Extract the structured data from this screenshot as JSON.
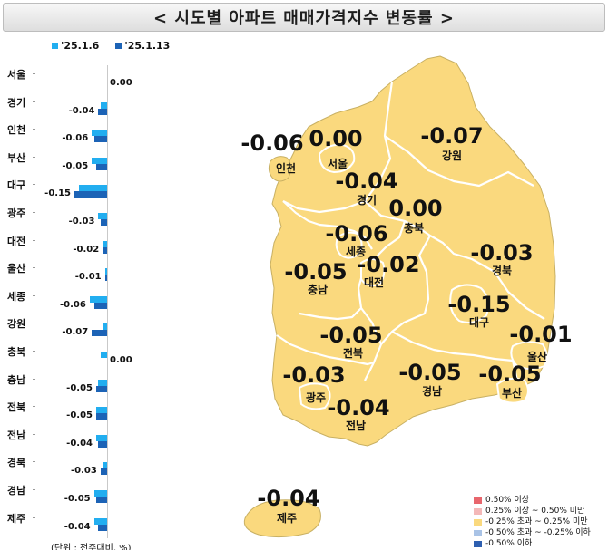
{
  "title": "< 시도별 아파트 매매가격지수 변동률 >",
  "bar_chart": {
    "legend": [
      {
        "label": "'25.1.6",
        "color": "#22aef0"
      },
      {
        "label": "'25.1.13",
        "color": "#1c63b6"
      }
    ],
    "unit_note": "(단위 : 전주대비, %)",
    "rows": [
      {
        "region": "서울",
        "prev": 0.0,
        "curr": 0.0,
        "label": "0.00"
      },
      {
        "region": "경기",
        "prev": -0.03,
        "curr": -0.04,
        "label": "-0.04"
      },
      {
        "region": "인천",
        "prev": -0.07,
        "curr": -0.06,
        "label": "-0.06"
      },
      {
        "region": "부산",
        "prev": -0.07,
        "curr": -0.05,
        "label": "-0.05"
      },
      {
        "region": "대구",
        "prev": -0.13,
        "curr": -0.15,
        "label": "-0.15"
      },
      {
        "region": "광주",
        "prev": -0.04,
        "curr": -0.03,
        "label": "-0.03"
      },
      {
        "region": "대전",
        "prev": -0.02,
        "curr": -0.02,
        "label": "-0.02"
      },
      {
        "region": "울산",
        "prev": -0.01,
        "curr": -0.01,
        "label": "-0.01"
      },
      {
        "region": "세종",
        "prev": -0.08,
        "curr": -0.06,
        "label": "-0.06"
      },
      {
        "region": "강원",
        "prev": -0.02,
        "curr": -0.07,
        "label": "-0.07"
      },
      {
        "region": "충북",
        "prev": -0.03,
        "curr": 0.0,
        "label": "0.00"
      },
      {
        "region": "충남",
        "prev": -0.04,
        "curr": -0.05,
        "label": "-0.05"
      },
      {
        "region": "전북",
        "prev": -0.05,
        "curr": -0.05,
        "label": "-0.05"
      },
      {
        "region": "전남",
        "prev": -0.05,
        "curr": -0.04,
        "label": "-0.04"
      },
      {
        "region": "경북",
        "prev": -0.02,
        "curr": -0.03,
        "label": "-0.03"
      },
      {
        "region": "경남",
        "prev": -0.06,
        "curr": -0.05,
        "label": "-0.05"
      },
      {
        "region": "제주",
        "prev": -0.06,
        "curr": -0.04,
        "label": "-0.04"
      }
    ]
  },
  "map": {
    "regions": {
      "seoul": {
        "name": "서울",
        "rate": "0.00"
      },
      "gyeonggi": {
        "name": "경기",
        "rate": "-0.04"
      },
      "incheon": {
        "name": "인천",
        "rate": "-0.06"
      },
      "gangwon": {
        "name": "강원",
        "rate": "-0.07"
      },
      "chungbuk": {
        "name": "충북",
        "rate": "0.00"
      },
      "sejong": {
        "name": "세종",
        "rate": "-0.06"
      },
      "chungnam": {
        "name": "충남",
        "rate": "-0.05"
      },
      "daejeon": {
        "name": "대전",
        "rate": "-0.02"
      },
      "gyeongbuk": {
        "name": "경북",
        "rate": "-0.03"
      },
      "daegu": {
        "name": "대구",
        "rate": "-0.15"
      },
      "ulsan": {
        "name": "울산",
        "rate": "-0.01"
      },
      "jeonbuk": {
        "name": "전북",
        "rate": "-0.05"
      },
      "gwangju": {
        "name": "광주",
        "rate": "-0.03"
      },
      "jeonnam": {
        "name": "전남",
        "rate": "-0.04"
      },
      "gyeongnam": {
        "name": "경남",
        "rate": "-0.05"
      },
      "busan": {
        "name": "부산",
        "rate": "-0.05"
      },
      "jeju": {
        "name": "제주",
        "rate": "-0.04"
      }
    },
    "legend": [
      {
        "label": "0.50% 이상",
        "color": "#e8666d"
      },
      {
        "label": "0.25% 이상 ~ 0.50% 미만",
        "color": "#f4b8b8"
      },
      {
        "label": "-0.25% 초과 ~ 0.25% 미만",
        "color": "#fad97e"
      },
      {
        "label": "-0.50% 초과 ~ -0.25% 이하",
        "color": "#a9c3e6"
      },
      {
        "label": "-0.50% 이하",
        "color": "#2e5fb0"
      }
    ]
  }
}
